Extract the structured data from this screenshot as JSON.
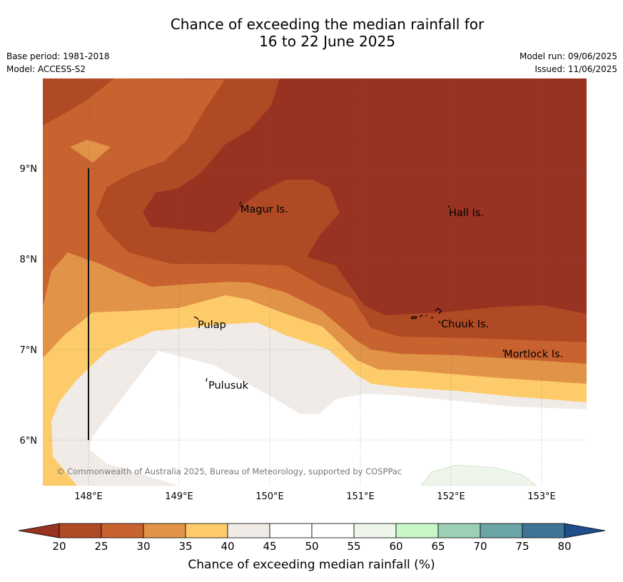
{
  "header": {
    "title_line1": "Chance of exceeding the median rainfall for",
    "title_line2": "16 to 22 June 2025",
    "base_period": "Base period: 1981-2018",
    "model": "Model: ACCESS-S2",
    "model_run": "Model run: 09/06/2025",
    "issued": "Issued: 11/06/2025"
  },
  "map": {
    "lat_labels": [
      "9°N",
      "8°N",
      "7°N",
      "6°N"
    ],
    "lon_labels": [
      "148°E",
      "149°E",
      "150°E",
      "151°E",
      "152°E",
      "153°E"
    ],
    "places": [
      {
        "name": "Magur Is."
      },
      {
        "name": "Hall Is."
      },
      {
        "name": "Pulap"
      },
      {
        "name": "Chuuk Is."
      },
      {
        "name": "Mortlock Is."
      },
      {
        "name": "Pulusuk"
      }
    ],
    "credit": "© Commonwealth of Australia 2025, Bureau of Meteorology, supported by COSPPac"
  },
  "colorbar": {
    "ticks": [
      "20",
      "25",
      "30",
      "35",
      "40",
      "45",
      "50",
      "55",
      "60",
      "65",
      "70",
      "75",
      "80"
    ],
    "colors": [
      "#b04a25",
      "#c8622f",
      "#e19448",
      "#fecb6b",
      "#f0ebe6",
      "#ffffff",
      "#ffffff",
      "#eef6ec",
      "#c9f7c8",
      "#9ccfb4",
      "#6aa4a5",
      "#3f7496"
    ],
    "low_color": "#983322",
    "high_color": "#1f4e8a",
    "label": "Chance of exceeding median rainfall (%)"
  }
}
